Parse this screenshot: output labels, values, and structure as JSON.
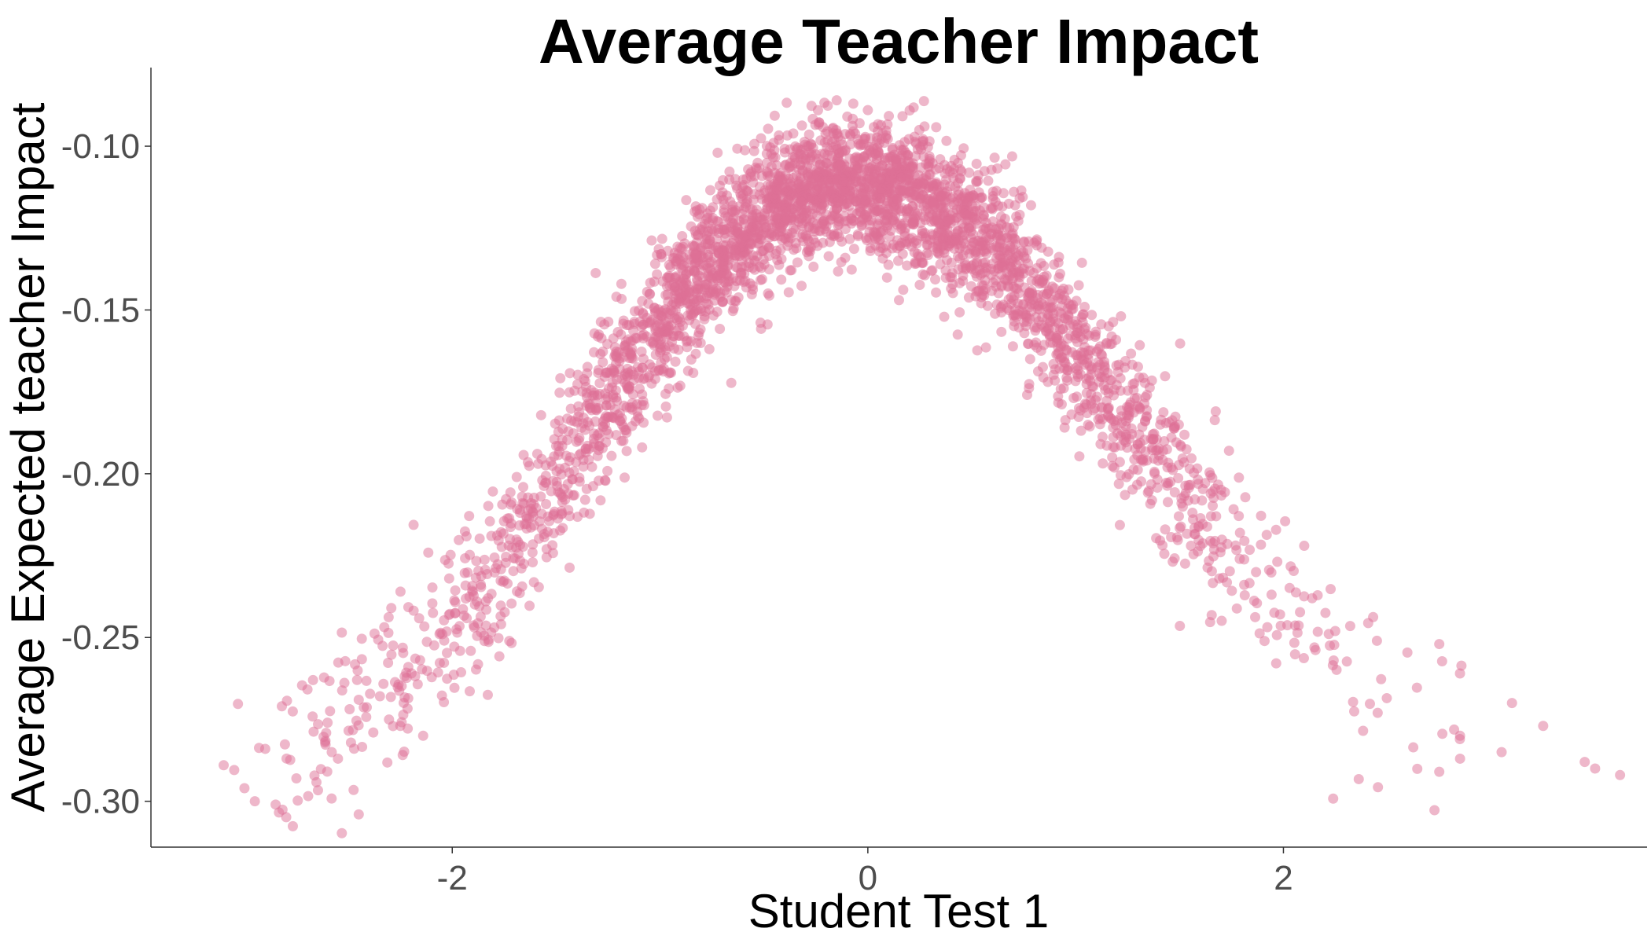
{
  "chart_data": {
    "type": "scatter",
    "title": "Average Teacher Impact",
    "xlabel": "Student Test 1",
    "ylabel": "Average Expected teacher Impact",
    "xlim": [
      -3.45,
      3.75
    ],
    "ylim": [
      -0.314,
      -0.076
    ],
    "x_ticks": [
      -2,
      0,
      2
    ],
    "x_tick_labels": [
      "-2",
      "0",
      "2"
    ],
    "y_ticks": [
      -0.1,
      -0.15,
      -0.2,
      -0.25,
      -0.3
    ],
    "y_tick_labels": [
      "-0.10",
      "-0.15",
      "-0.20",
      "-0.25",
      "-0.30"
    ],
    "grid": false,
    "legend": "none",
    "point_color": "#dd6f96",
    "point_opacity": 0.5,
    "trend": {
      "description": "bell-shaped relationship",
      "peak_x": -0.15,
      "peak_y": -0.111,
      "x": [
        -3.1,
        -2.8,
        -2.4,
        -2.0,
        -1.6,
        -1.2,
        -0.8,
        -0.4,
        -0.15,
        0.2,
        0.6,
        1.0,
        1.4,
        1.8,
        2.2,
        2.6,
        3.0,
        3.4
      ],
      "y": [
        -0.295,
        -0.285,
        -0.268,
        -0.245,
        -0.212,
        -0.172,
        -0.138,
        -0.116,
        -0.111,
        -0.114,
        -0.131,
        -0.162,
        -0.195,
        -0.228,
        -0.254,
        -0.272,
        -0.283,
        -0.29
      ],
      "spread": 0.012
    },
    "points": [
      {
        "x": -3.1,
        "y": -0.289
      },
      {
        "x": -3.0,
        "y": -0.296
      },
      {
        "x": -2.95,
        "y": -0.3
      },
      {
        "x": -2.9,
        "y": -0.284
      },
      {
        "x": -2.85,
        "y": -0.301
      },
      {
        "x": -2.82,
        "y": -0.271
      },
      {
        "x": -2.75,
        "y": -0.293
      },
      {
        "x": -2.67,
        "y": -0.263
      },
      {
        "x": -2.6,
        "y": -0.276
      },
      {
        "x": -2.55,
        "y": -0.287
      },
      {
        "x": -2.45,
        "y": -0.269
      },
      {
        "x": -2.45,
        "y": -0.304
      },
      {
        "x": -2.38,
        "y": -0.279
      },
      {
        "x": -2.25,
        "y": -0.277
      },
      {
        "x": -2.14,
        "y": -0.28
      },
      {
        "x": -0.15,
        "y": -0.086
      },
      {
        "x": -0.07,
        "y": -0.087
      },
      {
        "x": 0.0,
        "y": -0.089
      },
      {
        "x": 0.15,
        "y": -0.147
      },
      {
        "x": 2.1,
        "y": -0.222
      },
      {
        "x": 2.45,
        "y": -0.251
      },
      {
        "x": 2.75,
        "y": -0.252
      },
      {
        "x": 2.75,
        "y": -0.291
      },
      {
        "x": 2.85,
        "y": -0.28
      },
      {
        "x": 2.85,
        "y": -0.287
      },
      {
        "x": 3.05,
        "y": -0.285
      },
      {
        "x": 3.1,
        "y": -0.27
      },
      {
        "x": 3.25,
        "y": -0.277
      },
      {
        "x": 3.45,
        "y": -0.288
      },
      {
        "x": 3.5,
        "y": -0.29
      },
      {
        "x": 3.62,
        "y": -0.292
      }
    ]
  }
}
